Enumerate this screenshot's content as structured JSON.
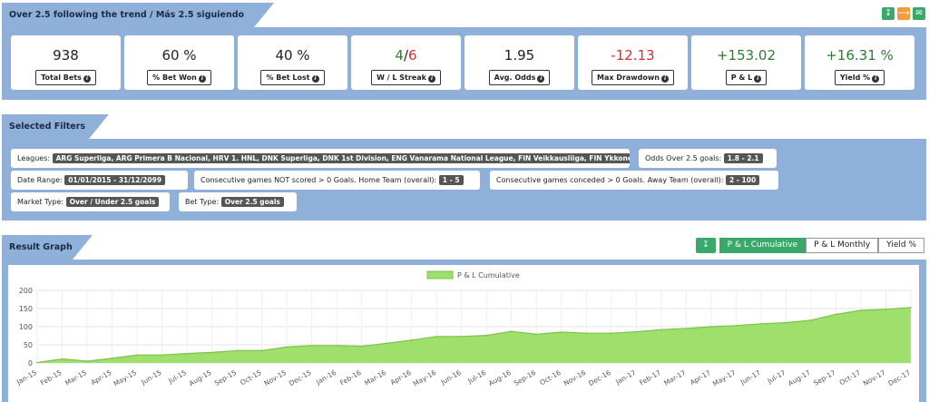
{
  "header": {
    "title": "Over 2.5 following the trend / Más 2.5 siguiendo la tendencia",
    "icons": [
      "download-icon",
      "share-icon",
      "email-check-icon"
    ]
  },
  "stats": [
    {
      "value": "938",
      "label": "Total Bets",
      "color": "#222222"
    },
    {
      "value": "60 %",
      "label": "% Bet Won",
      "color": "#222222"
    },
    {
      "value": "40 %",
      "label": "% Bet Lost",
      "color": "#222222"
    },
    {
      "value_win": "4",
      "value_sep": "/",
      "value_loss": "6",
      "label": "W / L Streak"
    },
    {
      "value": "1.95",
      "label": "Avg. Odds",
      "color": "#222222"
    },
    {
      "value": "-12.13",
      "label": "Max Drawdown",
      "color": "#d32f2f"
    },
    {
      "value": "+153.02",
      "label": "P & L",
      "color": "#2e7d32"
    },
    {
      "value": "+16.31 %",
      "label": "Yield %",
      "color": "#2e7d32"
    }
  ],
  "filters": {
    "title": "Selected Filters",
    "leagues_label": "Leagues:",
    "leagues_value": "ARG Superliga, ARG Primera B Nacional, HRV 1. HNL, DNK Superliga, DNK 1st Division, ENG Vanarama National League, FIN Veikkausliiga, FIN Ykkonen ...",
    "odds_label": "Odds Over 2.5 goals:",
    "odds_value": "1.8 - 2.1",
    "date_label": "Date Range:",
    "date_value": "01/01/2015 - 31/12/2099",
    "home_label": "Consecutive games NOT scored > 0 Goals. Home Team (overall):",
    "home_value": "1 - 5",
    "away_label": "Consecutive games conceded > 0 Goals. Away Team (overall):",
    "away_value": "2 - 100",
    "market_label": "Market Type:",
    "market_value": "Over / Under 2.5 goals",
    "bet_label": "Bet Type:",
    "bet_value": "Over 2.5 goals"
  },
  "graph": {
    "title": "Result Graph",
    "buttons": [
      "P & L Cumulative",
      "P & L Monthly",
      "Yield %"
    ],
    "active_button": "P & L Cumulative"
  },
  "chart_data": {
    "type": "area",
    "legend": "P & L Cumulative",
    "legend_position": "top-center",
    "fill_color": "#9ee06b",
    "line_color": "#7cc24a",
    "ylim": [
      0,
      200
    ],
    "yticks": [
      0,
      50,
      100,
      150,
      200
    ],
    "grid": true,
    "categories": [
      "Jan-15",
      "Feb-15",
      "Mar-15",
      "Apr-15",
      "May-15",
      "Jun-15",
      "Jul-15",
      "Aug-15",
      "Sep-15",
      "Oct-15",
      "Nov-15",
      "Dec-15",
      "Jan-16",
      "Feb-16",
      "Mar-16",
      "Apr-16",
      "May-16",
      "Jun-16",
      "Jul-16",
      "Aug-16",
      "Sep-16",
      "Oct-16",
      "Nov-16",
      "Dec-16",
      "Jan-17",
      "Feb-17",
      "Mar-17",
      "Apr-17",
      "May-17",
      "Jun-17",
      "Jul-17",
      "Aug-17",
      "Sep-17",
      "Oct-17",
      "Nov-17",
      "Dec-17"
    ],
    "values": [
      1,
      11,
      5,
      13,
      22,
      22,
      26,
      29,
      34,
      34,
      44,
      48,
      48,
      46,
      54,
      63,
      73,
      73,
      76,
      87,
      79,
      85,
      82,
      82,
      86,
      92,
      95,
      100,
      103,
      108,
      111,
      118,
      134,
      145,
      148,
      153
    ]
  }
}
